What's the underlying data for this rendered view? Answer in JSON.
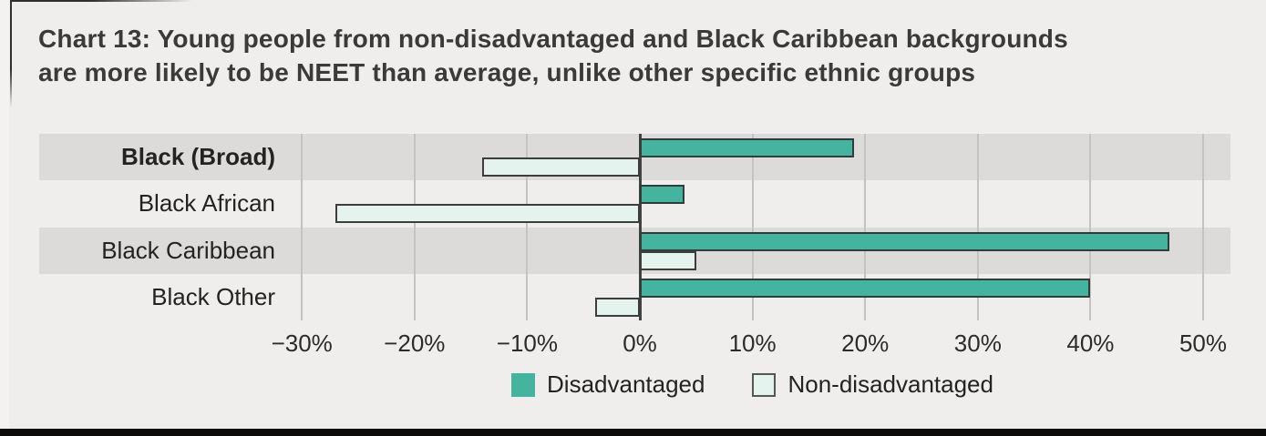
{
  "title": {
    "line1": "Chart 13: Young people from non-disadvantaged and Black Caribbean backgrounds",
    "line2": "are more likely to be NEET than average, unlike other specific ethnic groups"
  },
  "chart_data": {
    "type": "bar",
    "orientation": "horizontal",
    "title": "Chart 13: Young people from non-disadvantaged and Black Caribbean backgrounds are more likely to be NEET than average, unlike other specific ethnic groups",
    "categories": [
      "Black (Broad)",
      "Black African",
      "Black Caribbean",
      "Black Other"
    ],
    "bold_category": "Black (Broad)",
    "series": [
      {
        "name": "Disadvantaged",
        "values": [
          19,
          4,
          47,
          40
        ],
        "fill": "#45b49e",
        "border": "#303d38"
      },
      {
        "name": "Non-disadvantaged",
        "values": [
          -14,
          -27,
          5,
          -4
        ],
        "fill": "#e4f3ed",
        "border": "#3d3d3d"
      }
    ],
    "x_unit": "%",
    "x_ticks": [
      -30,
      -20,
      -10,
      0,
      10,
      20,
      30,
      40,
      50
    ],
    "x_tick_labels": [
      "−30%",
      "−20%",
      "−10%",
      "0%",
      "10%",
      "20%",
      "30%",
      "40%",
      "50%"
    ],
    "xlim": [
      -30,
      50
    ],
    "grid": true,
    "zero_line": true,
    "legend_position": "bottom",
    "row_stripe_color": "#dcdbd9",
    "background_color": "#efeeec"
  },
  "frame": {
    "bottom_bar_color": "#0b0b0b"
  }
}
